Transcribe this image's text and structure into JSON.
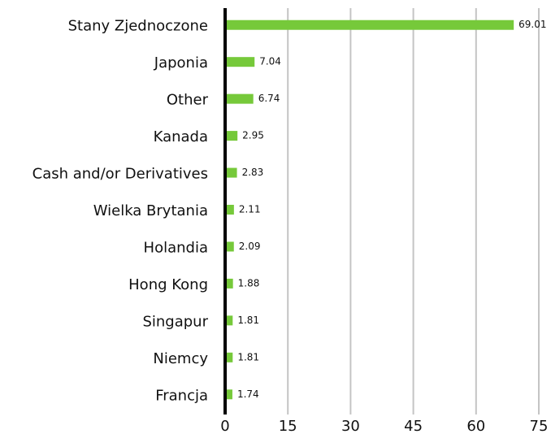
{
  "chart_data": {
    "type": "bar",
    "orientation": "horizontal",
    "categories": [
      "Stany Zjednoczone",
      "Japonia",
      "Other",
      "Kanada",
      "Cash and/or Derivatives",
      "Wielka Brytania",
      "Holandia",
      "Hong Kong",
      "Singapur",
      "Niemcy",
      "Francja"
    ],
    "values": [
      69.01,
      7.04,
      6.74,
      2.95,
      2.83,
      2.11,
      2.09,
      1.88,
      1.81,
      1.81,
      1.74
    ],
    "color": "#76c93a",
    "xlim": [
      0,
      75
    ],
    "xticks": [
      0,
      15,
      30,
      45,
      60,
      75
    ],
    "grid": true
  }
}
